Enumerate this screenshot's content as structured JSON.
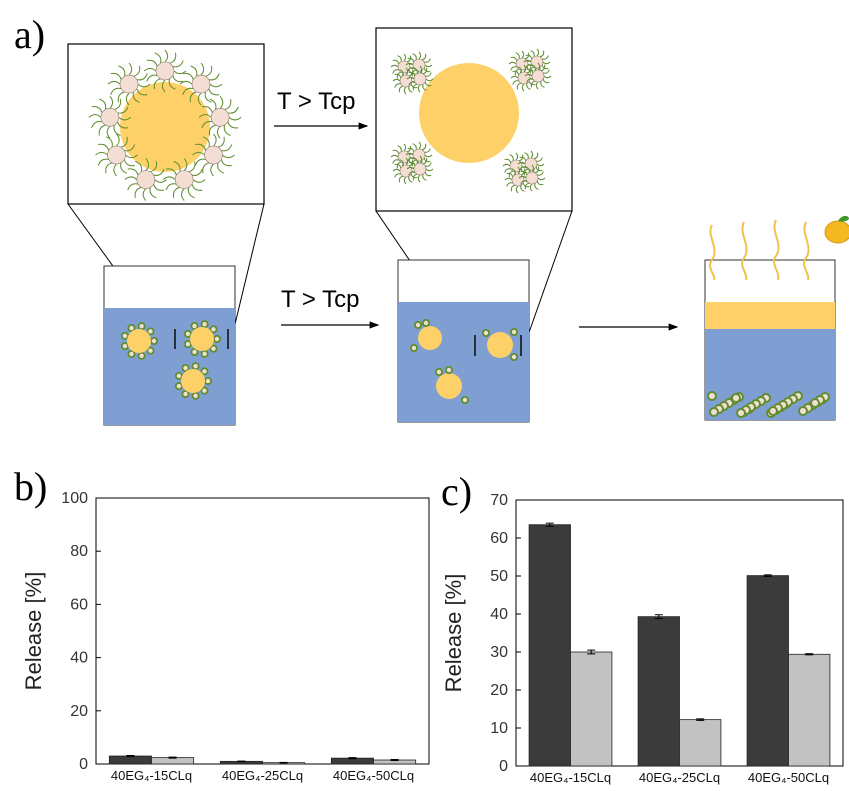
{
  "figure": {
    "panel_labels": {
      "a": "a)",
      "b": "b)",
      "c": "c)"
    },
    "transition_label_top": "T > Tcp",
    "transition_label_bottom": "T > Tcp"
  },
  "colors": {
    "core": "#FDD068",
    "water": "#7F9ED2",
    "shell": "#F4DDD2",
    "corona": "#5E8E2E",
    "bar_dark": "#3B3B3B",
    "bar_light": "#C2C2C2"
  },
  "chart_data": [
    {
      "type": "bar",
      "title": "",
      "xlabel": "",
      "ylabel": "Release [%]",
      "ylim": [
        0,
        100
      ],
      "yticks": [
        0,
        20,
        40,
        60,
        80,
        100
      ],
      "categories": [
        "40EG₄-15CLq",
        "40EG₄-25CLq",
        "40EG₄-50CLq"
      ],
      "series": [
        {
          "values": [
            3.0,
            1.0,
            2.2
          ],
          "errors": [
            0.2,
            0.1,
            0.2
          ]
        },
        {
          "values": [
            2.4,
            0.5,
            1.5
          ],
          "errors": [
            0.2,
            0.1,
            0.2
          ]
        }
      ]
    },
    {
      "type": "bar",
      "title": "",
      "xlabel": "",
      "ylabel": "Release [%]",
      "ylim": [
        0,
        70
      ],
      "yticks": [
        0,
        10,
        20,
        30,
        40,
        50,
        60,
        70
      ],
      "categories": [
        "40EG₄-15CLq",
        "40EG₄-25CLq",
        "40EG₄-50CLq"
      ],
      "series": [
        {
          "values": [
            63.5,
            39.3,
            50.1
          ],
          "errors": [
            0.4,
            0.5,
            0.2
          ]
        },
        {
          "values": [
            30.0,
            12.2,
            29.4
          ],
          "errors": [
            0.5,
            0.2,
            0.15
          ]
        }
      ]
    }
  ]
}
